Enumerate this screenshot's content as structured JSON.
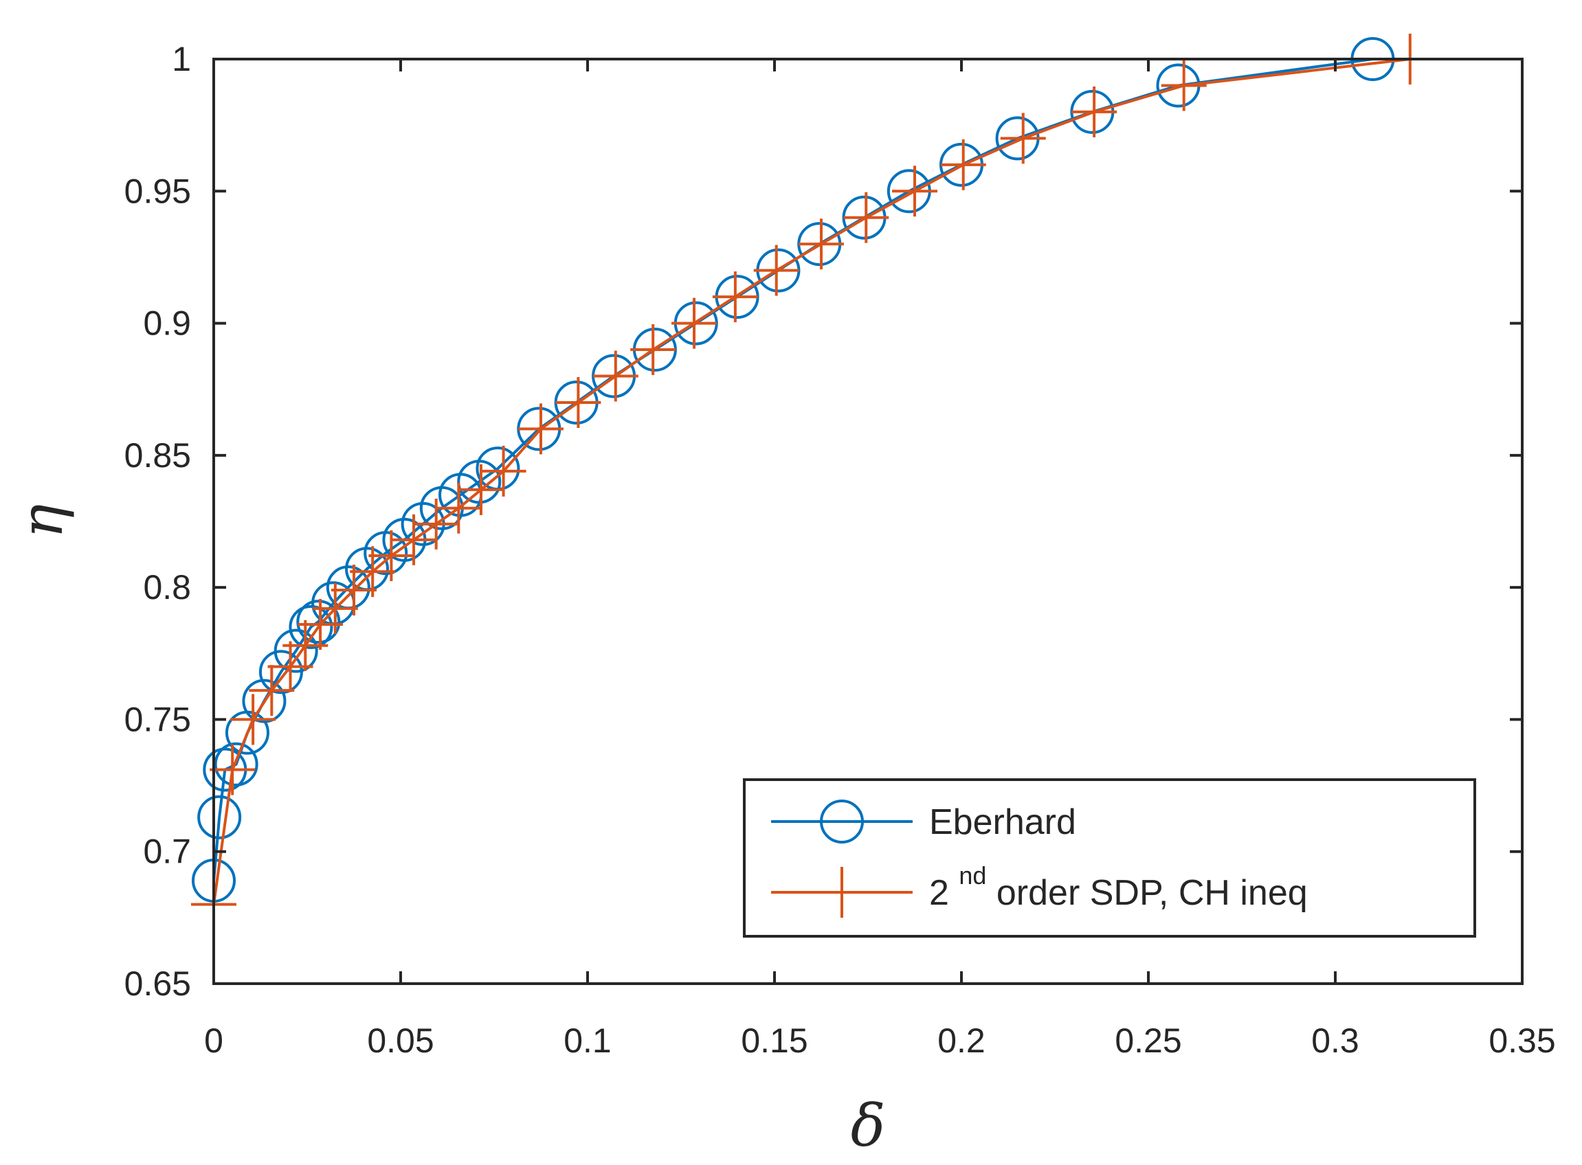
{
  "chart_data": {
    "type": "line",
    "title": "",
    "xlabel": "δ",
    "ylabel": "η",
    "xlim": [
      0,
      0.35
    ],
    "ylim": [
      0.65,
      1.0
    ],
    "xticks": [
      0,
      0.05,
      0.1,
      0.15,
      0.2,
      0.25,
      0.3,
      0.35
    ],
    "xtick_labels": [
      "0",
      "0.05",
      "0.1",
      "0.15",
      "0.2",
      "0.25",
      "0.3",
      "0.35"
    ],
    "yticks": [
      0.65,
      0.7,
      0.75,
      0.8,
      0.85,
      0.9,
      0.95,
      1.0
    ],
    "ytick_labels": [
      "0.65",
      "0.7",
      "0.75",
      "0.8",
      "0.85",
      "0.9",
      "0.95",
      "1"
    ],
    "grid": false,
    "legend_position": "bottom-right",
    "series": [
      {
        "name": "Eberhard",
        "color": "#0072BD",
        "marker": "circle",
        "x": [
          0.0,
          0.0015,
          0.003,
          0.006,
          0.009,
          0.0135,
          0.018,
          0.022,
          0.026,
          0.028,
          0.032,
          0.036,
          0.041,
          0.046,
          0.051,
          0.056,
          0.061,
          0.066,
          0.071,
          0.076,
          0.087,
          0.097,
          0.107,
          0.118,
          0.129,
          0.14,
          0.151,
          0.162,
          0.174,
          0.186,
          0.2,
          0.215,
          0.235,
          0.258,
          0.31
        ],
        "y": [
          0.689,
          0.713,
          0.731,
          0.733,
          0.745,
          0.757,
          0.768,
          0.776,
          0.785,
          0.787,
          0.794,
          0.8,
          0.807,
          0.813,
          0.818,
          0.824,
          0.83,
          0.835,
          0.84,
          0.845,
          0.86,
          0.87,
          0.88,
          0.89,
          0.9,
          0.91,
          0.92,
          0.93,
          0.94,
          0.95,
          0.96,
          0.97,
          0.98,
          0.99,
          1.0
        ]
      },
      {
        "name": "2nd order SDP, CH ineq",
        "label_main": "2",
        "label_sup": "nd",
        "label_rest": " order SDP, CH ineq",
        "color": "#D95319",
        "marker": "plus",
        "x": [
          0.0,
          0.005,
          0.0105,
          0.0155,
          0.0205,
          0.0245,
          0.0285,
          0.0325,
          0.0375,
          0.0425,
          0.0475,
          0.0535,
          0.0595,
          0.0655,
          0.0715,
          0.0775,
          0.0875,
          0.0975,
          0.1075,
          0.1175,
          0.1285,
          0.1395,
          0.1505,
          0.1625,
          0.1745,
          0.1875,
          0.2005,
          0.2165,
          0.2355,
          0.2595,
          0.32
        ],
        "y": [
          0.68,
          0.731,
          0.75,
          0.761,
          0.77,
          0.778,
          0.786,
          0.792,
          0.799,
          0.806,
          0.812,
          0.818,
          0.824,
          0.83,
          0.837,
          0.844,
          0.86,
          0.87,
          0.88,
          0.89,
          0.9,
          0.91,
          0.92,
          0.93,
          0.94,
          0.95,
          0.96,
          0.97,
          0.98,
          0.99,
          1.0
        ]
      }
    ]
  }
}
